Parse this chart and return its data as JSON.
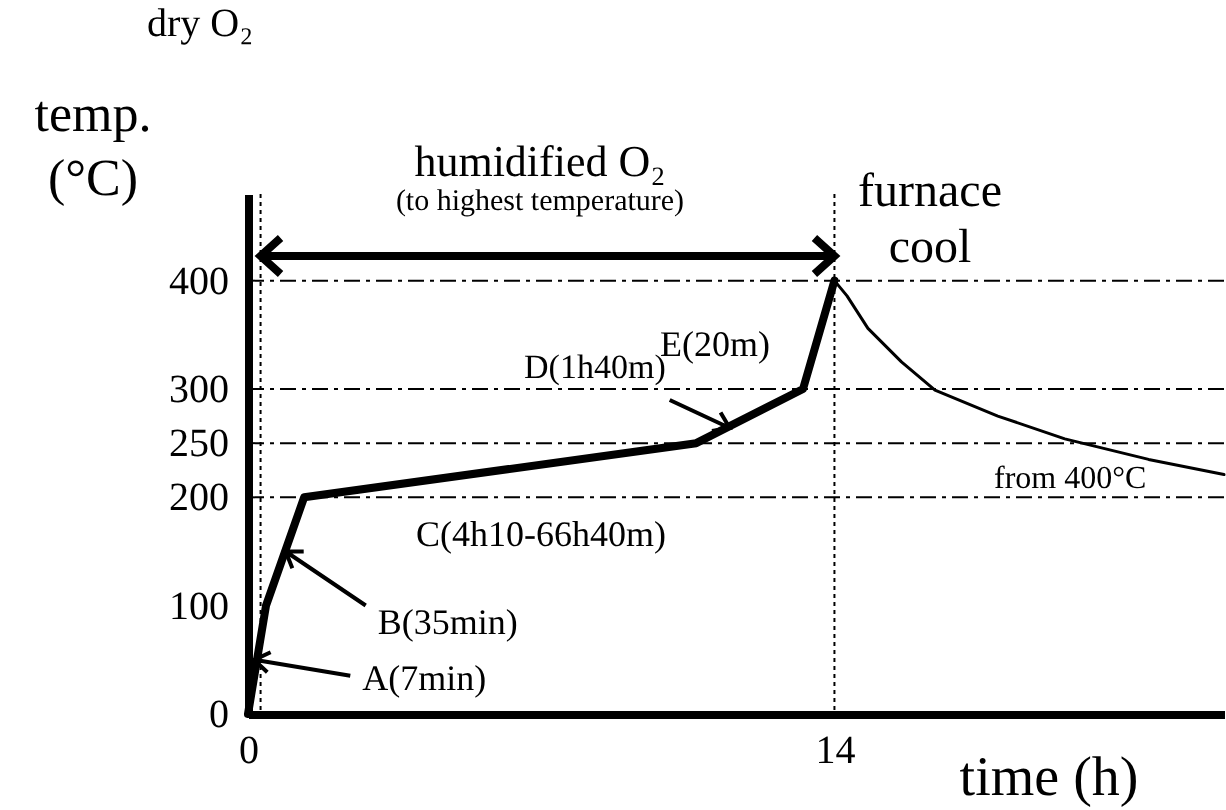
{
  "chart_data": {
    "type": "line",
    "xlabel": "time (h)",
    "ylabel": "temp.\n(°C)",
    "series": [
      {
        "color": "#000000",
        "x": [
          0,
          0.43,
          1.34,
          10.7,
          13.25,
          14
        ],
        "values": [
          0,
          100,
          200,
          250,
          300,
          400
        ]
      },
      {
        "color": "#000000",
        "x": [
          14,
          14.3,
          14.8,
          15.6,
          16.4,
          17.9,
          19.5,
          21.5,
          23.3
        ],
        "values": [
          400,
          386,
          356,
          325,
          299,
          275,
          254,
          235,
          221
        ]
      }
    ],
    "xlim": [
      0,
      23.3
    ],
    "ylim": [
      0,
      480
    ],
    "xticks": [
      0,
      14
    ],
    "yticks": [
      0,
      100,
      200,
      250,
      300,
      400
    ],
    "ref_lines": [
      {
        "axis": "x",
        "value": 0.3,
        "line_style": "dotted",
        "color": "#000000"
      },
      {
        "axis": "x",
        "value": 14,
        "line_style": "dotted",
        "color": "#000000"
      },
      {
        "axis": "y",
        "value": 200,
        "line_style": "dashed",
        "color": "#000000"
      },
      {
        "axis": "y",
        "value": 250,
        "line_style": "dashed",
        "color": "#000000"
      },
      {
        "axis": "y",
        "value": 300,
        "line_style": "dashed",
        "color": "#000000"
      },
      {
        "axis": "y",
        "value": 400,
        "line_style": "dashed",
        "color": "#000000"
      }
    ],
    "annotations": [
      "dry O₂",
      "humidified O₂",
      "(to highest temperature)",
      "furnace\ncool",
      "from 400°C",
      {
        "text": "A(7min)",
        "x": 0.15,
        "y": 50
      },
      {
        "text": "B(35min)",
        "x": 0.9,
        "y": 150
      },
      "C(4h10-66h40m)",
      {
        "text": "D(1h40m)",
        "x": 11.5,
        "y": 264
      },
      "E(20m)"
    ]
  }
}
